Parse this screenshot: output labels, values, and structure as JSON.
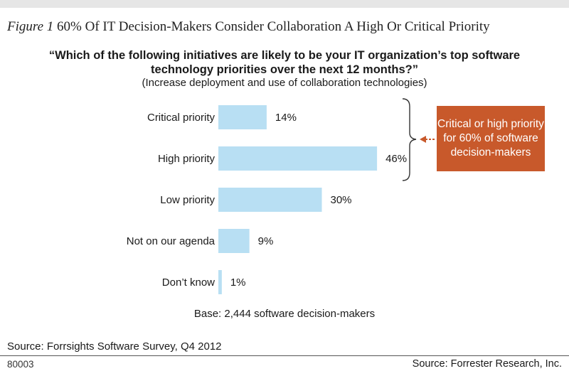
{
  "figure": {
    "label": "Figure 1",
    "title": "60% Of IT Decision-Makers Consider Collaboration A High Or Critical Priority"
  },
  "question": "“Which of the following initiatives are likely to be your IT organization’s top software technology priorities over the next 12 months?”",
  "subquestion": "(Increase deployment and use of collaboration technologies)",
  "callout": "Critical or high priority for 60% of software decision-makers",
  "base_note": "Base: 2,444 software decision-makers",
  "source_left": "Source: Forrsights Software Survey, Q4 2012",
  "code": "80003",
  "source_right": "Source: Forrester Research, Inc.",
  "colors": {
    "bar": "#b8dff3",
    "callout": "#c8592b",
    "arrow": "#c8592b",
    "brace": "#333333"
  },
  "chart_data": {
    "type": "bar",
    "orientation": "horizontal",
    "categories": [
      "Critical priority",
      "High priority",
      "Low priority",
      "Not on our agenda",
      "Don’t know"
    ],
    "values": [
      14,
      46,
      30,
      9,
      1
    ],
    "value_labels": [
      "14%",
      "46%",
      "30%",
      "9%",
      "1%"
    ],
    "unit": "%",
    "xlim": [
      0,
      50
    ],
    "grid": false,
    "legend": "none"
  }
}
